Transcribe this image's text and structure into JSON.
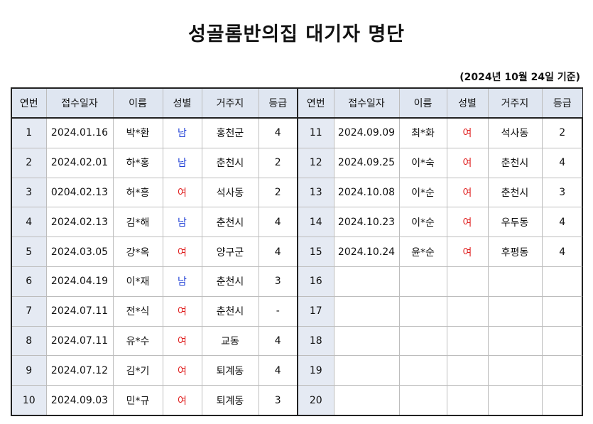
{
  "title": "성골롬반의집 대기자 명단",
  "as_of": "(2024년 10월 24일 기준)",
  "headers": [
    "연번",
    "접수일자",
    "이름",
    "성별",
    "거주지",
    "등급"
  ],
  "gender_colors": {
    "남": "#1f3fd6",
    "여": "#e02020"
  },
  "left_rows": [
    {
      "no": "1",
      "date": "2024.01.16",
      "name": "박*환",
      "gender": "남",
      "residence": "홍천군",
      "grade": "4"
    },
    {
      "no": "2",
      "date": "2024.02.01",
      "name": "하*홍",
      "gender": "남",
      "residence": "춘천시",
      "grade": "2"
    },
    {
      "no": "3",
      "date": "0204.02.13",
      "name": "허*흥",
      "gender": "여",
      "residence": "석사동",
      "grade": "2"
    },
    {
      "no": "4",
      "date": "2024.02.13",
      "name": "김*해",
      "gender": "남",
      "residence": "춘천시",
      "grade": "4"
    },
    {
      "no": "5",
      "date": "2024.03.05",
      "name": "강*옥",
      "gender": "여",
      "residence": "양구군",
      "grade": "4"
    },
    {
      "no": "6",
      "date": "2024.04.19",
      "name": "이*재",
      "gender": "남",
      "residence": "춘천시",
      "grade": "3"
    },
    {
      "no": "7",
      "date": "2024.07.11",
      "name": "전*식",
      "gender": "여",
      "residence": "춘천시",
      "grade": "-"
    },
    {
      "no": "8",
      "date": "2024.07.11",
      "name": "유*수",
      "gender": "여",
      "residence": "교동",
      "grade": "4"
    },
    {
      "no": "9",
      "date": "2024.07.12",
      "name": "김*기",
      "gender": "여",
      "residence": "퇴계동",
      "grade": "4"
    },
    {
      "no": "10",
      "date": "2024.09.03",
      "name": "민*규",
      "gender": "여",
      "residence": "퇴계동",
      "grade": "3"
    }
  ],
  "right_rows": [
    {
      "no": "11",
      "date": "2024.09.09",
      "name": "최*화",
      "gender": "여",
      "residence": "석사동",
      "grade": "2"
    },
    {
      "no": "12",
      "date": "2024.09.25",
      "name": "이*숙",
      "gender": "여",
      "residence": "춘천시",
      "grade": "4"
    },
    {
      "no": "13",
      "date": "2024.10.08",
      "name": "이*순",
      "gender": "여",
      "residence": "춘천시",
      "grade": "3"
    },
    {
      "no": "14",
      "date": "2024.10.23",
      "name": "이*순",
      "gender": "여",
      "residence": "우두동",
      "grade": "4"
    },
    {
      "no": "15",
      "date": "2024.10.24",
      "name": "윤*순",
      "gender": "여",
      "residence": "후평동",
      "grade": "4"
    },
    {
      "no": "16",
      "date": "",
      "name": "",
      "gender": "",
      "residence": "",
      "grade": ""
    },
    {
      "no": "17",
      "date": "",
      "name": "",
      "gender": "",
      "residence": "",
      "grade": ""
    },
    {
      "no": "18",
      "date": "",
      "name": "",
      "gender": "",
      "residence": "",
      "grade": ""
    },
    {
      "no": "19",
      "date": "",
      "name": "",
      "gender": "",
      "residence": "",
      "grade": ""
    },
    {
      "no": "20",
      "date": "",
      "name": "",
      "gender": "",
      "residence": "",
      "grade": ""
    }
  ]
}
